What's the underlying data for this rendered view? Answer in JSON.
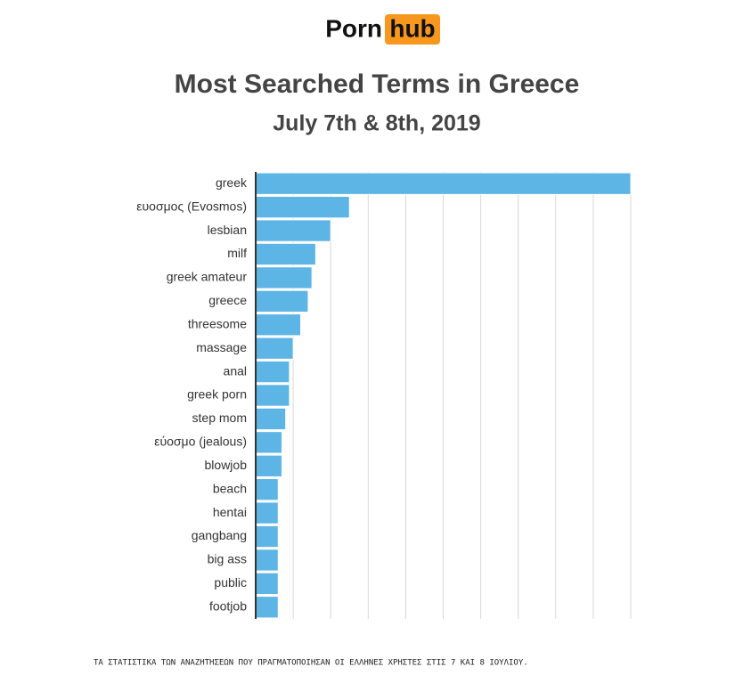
{
  "logo": {
    "left": "Porn",
    "right": "hub"
  },
  "chart_data": {
    "type": "bar",
    "orientation": "horizontal",
    "title": "Most Searched Terms in Greece",
    "subtitle": "July 7th & 8th, 2019",
    "categories": [
      "greek",
      "ευοσμος (Evosmos)",
      "lesbian",
      "milf",
      "greek amateur",
      "greece",
      "threesome",
      "massage",
      "anal",
      "greek porn",
      "step mom",
      "εύοσμο (jealous)",
      "blowjob",
      "beach",
      "hentai",
      "gangbang",
      "big ass",
      "public",
      "footjob"
    ],
    "values": [
      100,
      25,
      20,
      16,
      15,
      14,
      12,
      10,
      9,
      9,
      8,
      7,
      7,
      6,
      6,
      6,
      6,
      6,
      6
    ],
    "color": "#5cb5e5",
    "xlim": [
      0,
      100
    ],
    "xticks": [
      0,
      10,
      20,
      30,
      40,
      50,
      60,
      70,
      80,
      90,
      100
    ],
    "grid": true
  },
  "footnote": "ΤΑ ΣΤΑΤΙΣΤΙΚΑ ΤΩΝ ΑΝΑΖΗΤΗΣΕΩΝ ΠΟΥ ΠΡΑΓΜΑΤΟΠΟΙΗΣΑΝ ΟΙ ΕΛΛΗΝΕΣ ΧΡΗΣΤΕΣ ΣΤΙΣ 7 ΚΑΙ 8 ΙΟΥΛΙΟΥ."
}
